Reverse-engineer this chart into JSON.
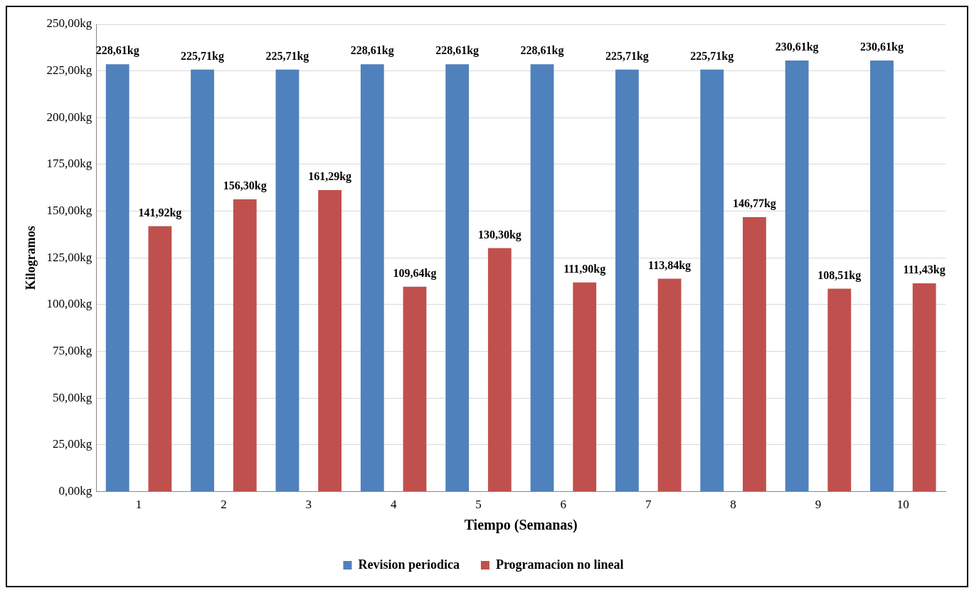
{
  "chart_data": {
    "type": "bar",
    "xlabel": "Tiempo (Semanas)",
    "ylabel": "Kilogramos",
    "categories": [
      "1",
      "2",
      "3",
      "4",
      "5",
      "6",
      "7",
      "8",
      "9",
      "10"
    ],
    "series": [
      {
        "name": "Revision periodica",
        "color": "#4f81bd",
        "values": [
          228.61,
          225.71,
          225.71,
          228.61,
          228.61,
          228.61,
          225.71,
          225.71,
          230.61,
          230.61
        ],
        "value_labels": [
          "228,61kg",
          "225,71kg",
          "225,71kg",
          "228,61kg",
          "228,61kg",
          "228,61kg",
          "225,71kg",
          "225,71kg",
          "230,61kg",
          "230,61kg"
        ]
      },
      {
        "name": "Programacion no lineal",
        "color": "#c0504d",
        "values": [
          141.92,
          156.3,
          161.29,
          109.64,
          130.3,
          111.9,
          113.84,
          146.77,
          108.51,
          111.43
        ],
        "value_labels": [
          "141,92kg",
          "156,30kg",
          "161,29kg",
          "109,64kg",
          "130,30kg",
          "111,90kg",
          "113,84kg",
          "146,77kg",
          "108,51kg",
          "111,43kg"
        ]
      }
    ],
    "ylim": [
      0,
      250
    ],
    "yticks": [
      {
        "value": 0,
        "label": "0,00kg"
      },
      {
        "value": 25,
        "label": "25,00kg"
      },
      {
        "value": 50,
        "label": "50,00kg"
      },
      {
        "value": 75,
        "label": "75,00kg"
      },
      {
        "value": 100,
        "label": "100,00kg"
      },
      {
        "value": 125,
        "label": "125,00kg"
      },
      {
        "value": 150,
        "label": "150,00kg"
      },
      {
        "value": 175,
        "label": "175,00kg"
      },
      {
        "value": 200,
        "label": "200,00kg"
      },
      {
        "value": 225,
        "label": "225,00kg"
      },
      {
        "value": 250,
        "label": "250,00kg"
      }
    ],
    "grid": "y",
    "legend": "bottom"
  }
}
